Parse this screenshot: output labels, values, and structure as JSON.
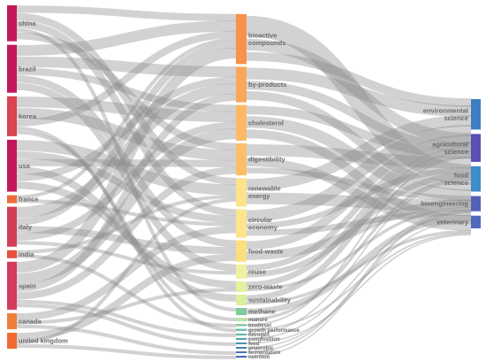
{
  "diagram": {
    "type": "sankey",
    "columns": [
      {
        "id": "countries",
        "nodes": [
          {
            "id": "china",
            "label": "china",
            "color": "#c2185b",
            "weight": 9
          },
          {
            "id": "brazil",
            "label": "brazil",
            "color": "#c2185b",
            "weight": 12
          },
          {
            "id": "korea",
            "label": "korea",
            "color": "#d94352",
            "weight": 10
          },
          {
            "id": "usa",
            "label": "usa",
            "color": "#c2185b",
            "weight": 13
          },
          {
            "id": "france",
            "label": "france",
            "color": "#ef6c3a",
            "weight": 2
          },
          {
            "id": "italy",
            "label": "italy",
            "color": "#d13f56",
            "weight": 10
          },
          {
            "id": "india",
            "label": "india",
            "color": "#e8503e",
            "weight": 2
          },
          {
            "id": "spain",
            "label": "spain",
            "color": "#d43a5b",
            "weight": 12
          },
          {
            "id": "canada",
            "label": "canada",
            "color": "#f07f3c",
            "weight": 4
          },
          {
            "id": "uk",
            "label": "united kingdom",
            "color": "#f26b33",
            "weight": 4
          }
        ]
      },
      {
        "id": "topics",
        "nodes": [
          {
            "id": "bioactive",
            "label": "bioactive compounds",
            "color": "#f6924a",
            "weight": 14
          },
          {
            "id": "byproducts",
            "label": "by-products",
            "color": "#f9a85a",
            "weight": 10
          },
          {
            "id": "cholesterol",
            "label": "cholesterol",
            "color": "#fbb964",
            "weight": 10
          },
          {
            "id": "digestibility",
            "label": "digestibility",
            "color": "#fcbf68",
            "weight": 9
          },
          {
            "id": "renewable",
            "label": "renewable energy",
            "color": "#fde38a",
            "weight": 8
          },
          {
            "id": "circular",
            "label": "circular economy",
            "color": "#fde58e",
            "weight": 8
          },
          {
            "id": "foodwaste",
            "label": "food-waste",
            "color": "#fde07e",
            "weight": 6
          },
          {
            "id": "reuse",
            "label": "reuse",
            "color": "#eef2a0",
            "weight": 4
          },
          {
            "id": "zerowaste",
            "label": "zero-waste",
            "color": "#e8f0a0",
            "weight": 3
          },
          {
            "id": "sustainability",
            "label": "sustainability",
            "color": "#dbee9c",
            "weight": 3
          },
          {
            "id": "methane",
            "label": "methane",
            "color": "#7fcc9a",
            "weight": 2
          },
          {
            "id": "manure",
            "label": "manure",
            "color": "#bde3a6",
            "weight": 1
          },
          {
            "id": "biodiesel",
            "label": "biodiesel",
            "color": "#86c9a0",
            "weight": 0.6
          },
          {
            "id": "growth",
            "label": "growth performance",
            "color": "#6dbfa5",
            "weight": 0.6
          },
          {
            "id": "t1",
            "label": "nitrogen",
            "color": "#5bb1a9",
            "weight": 0.5
          },
          {
            "id": "t2",
            "label": "composition",
            "color": "#4fa1ad",
            "weight": 0.5
          },
          {
            "id": "t3",
            "label": "feed",
            "color": "#4792b1",
            "weight": 0.5
          },
          {
            "id": "t4",
            "label": "anaerobic",
            "color": "#4382b4",
            "weight": 0.5
          },
          {
            "id": "t5",
            "label": "fermentation",
            "color": "#4273b5",
            "weight": 0.5
          },
          {
            "id": "t6",
            "label": "nutrition",
            "color": "#3f66b5",
            "weight": 0.5
          }
        ]
      },
      {
        "id": "fields",
        "nodes": [
          {
            "id": "env",
            "label": "environmental science",
            "color": "#3d7fc2",
            "weight": 12
          },
          {
            "id": "agri",
            "label": "agricultural science",
            "color": "#5b4fb4",
            "weight": 11
          },
          {
            "id": "food",
            "label": "food science",
            "color": "#3c8dc8",
            "weight": 10
          },
          {
            "id": "bioeng",
            "label": "bioengineering",
            "color": "#5461b8",
            "weight": 6
          },
          {
            "id": "vet",
            "label": "veterinary",
            "color": "#4f69bd",
            "weight": 5
          }
        ]
      }
    ],
    "links": [
      [
        "china",
        "bioactive",
        2
      ],
      [
        "china",
        "renewable",
        2
      ],
      [
        "china",
        "circular",
        2
      ],
      [
        "china",
        "methane",
        1
      ],
      [
        "china",
        "digestibility",
        2
      ],
      [
        "brazil",
        "bioactive",
        3
      ],
      [
        "brazil",
        "byproducts",
        3
      ],
      [
        "brazil",
        "cholesterol",
        2
      ],
      [
        "brazil",
        "foodwaste",
        2
      ],
      [
        "brazil",
        "reuse",
        2
      ],
      [
        "korea",
        "cholesterol",
        3
      ],
      [
        "korea",
        "digestibility",
        3
      ],
      [
        "korea",
        "bioactive",
        2
      ],
      [
        "korea",
        "growth",
        1
      ],
      [
        "korea",
        "manure",
        1
      ],
      [
        "usa",
        "renewable",
        3
      ],
      [
        "usa",
        "circular",
        2
      ],
      [
        "usa",
        "digestibility",
        2
      ],
      [
        "usa",
        "sustainability",
        2
      ],
      [
        "usa",
        "byproducts",
        2
      ],
      [
        "usa",
        "zerowaste",
        2
      ],
      [
        "france",
        "bioactive",
        1
      ],
      [
        "france",
        "circular",
        1
      ],
      [
        "italy",
        "byproducts",
        3
      ],
      [
        "italy",
        "bioactive",
        2
      ],
      [
        "italy",
        "foodwaste",
        2
      ],
      [
        "italy",
        "cholesterol",
        2
      ],
      [
        "italy",
        "reuse",
        1
      ],
      [
        "india",
        "renewable",
        1
      ],
      [
        "india",
        "biodiesel",
        1
      ],
      [
        "spain",
        "bioactive",
        3
      ],
      [
        "spain",
        "cholesterol",
        3
      ],
      [
        "spain",
        "byproducts",
        2
      ],
      [
        "spain",
        "digestibility",
        2
      ],
      [
        "spain",
        "t1",
        1
      ],
      [
        "spain",
        "t3",
        1
      ],
      [
        "canada",
        "circular",
        2
      ],
      [
        "canada",
        "zerowaste",
        1
      ],
      [
        "canada",
        "t5",
        1
      ],
      [
        "uk",
        "foodwaste",
        2
      ],
      [
        "uk",
        "renewable",
        1
      ],
      [
        "uk",
        "t6",
        1
      ],
      [
        "bioactive",
        "food",
        7
      ],
      [
        "bioactive",
        "agri",
        4
      ],
      [
        "bioactive",
        "env",
        3
      ],
      [
        "byproducts",
        "env",
        4
      ],
      [
        "byproducts",
        "agri",
        3
      ],
      [
        "byproducts",
        "food",
        3
      ],
      [
        "cholesterol",
        "agri",
        3
      ],
      [
        "cholesterol",
        "food",
        4
      ],
      [
        "cholesterol",
        "vet",
        3
      ],
      [
        "digestibility",
        "agri",
        4
      ],
      [
        "digestibility",
        "vet",
        3
      ],
      [
        "digestibility",
        "bioeng",
        2
      ],
      [
        "renewable",
        "env",
        4
      ],
      [
        "renewable",
        "bioeng",
        4
      ],
      [
        "circular",
        "env",
        4
      ],
      [
        "circular",
        "agri",
        2
      ],
      [
        "circular",
        "bioeng",
        2
      ],
      [
        "foodwaste",
        "env",
        3
      ],
      [
        "foodwaste",
        "food",
        3
      ],
      [
        "reuse",
        "env",
        2
      ],
      [
        "reuse",
        "agri",
        2
      ],
      [
        "zerowaste",
        "env",
        2
      ],
      [
        "zerowaste",
        "food",
        1
      ],
      [
        "sustainability",
        "env",
        2
      ],
      [
        "sustainability",
        "vet",
        1
      ],
      [
        "methane",
        "bioeng",
        2
      ],
      [
        "manure",
        "agri",
        1
      ],
      [
        "biodiesel",
        "env",
        0.6
      ],
      [
        "growth",
        "vet",
        0.6
      ],
      [
        "t1",
        "agri",
        0.5
      ],
      [
        "t2",
        "food",
        0.5
      ],
      [
        "t3",
        "vet",
        0.5
      ],
      [
        "t4",
        "bioeng",
        0.5
      ],
      [
        "t5",
        "food",
        0.5
      ],
      [
        "t6",
        "food",
        0.5
      ]
    ]
  }
}
